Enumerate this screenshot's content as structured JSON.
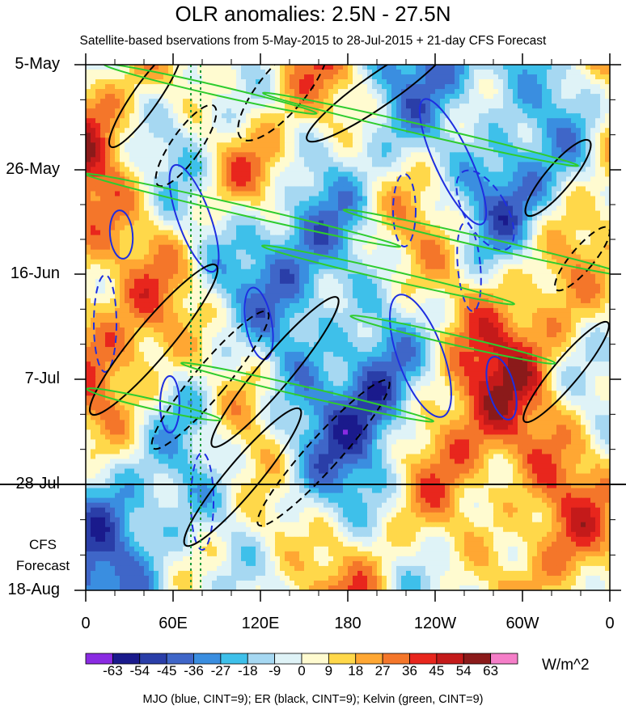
{
  "title": "OLR anomalies: 2.5N - 27.5N",
  "subtitle": "Satellite-based bservations from 5-May-2015 to 28-Jul-2015 + 21-day CFS Forecast",
  "forecast_label_1": "CFS",
  "forecast_label_2": "Forecast",
  "units": "W/m^2",
  "footer": "MJO (blue, CINT=9); ER (black, CINT=9); Kelvin (green, CINT=9)",
  "colorbar": {
    "labels": [
      "-63",
      "-54",
      "-45",
      "-36",
      "-27",
      "-18",
      "-9",
      "0",
      "9",
      "18",
      "27",
      "36",
      "45",
      "54",
      "63"
    ],
    "colors": [
      "#8a2be2",
      "#1a1a8c",
      "#2a3ea8",
      "#3f66c8",
      "#3a8ee0",
      "#3ec0ea",
      "#a6d8f2",
      "#dff3f7",
      "#fffbd0",
      "#ffd84a",
      "#ffa733",
      "#f4762a",
      "#e8261d",
      "#c41a1a",
      "#8b1a1a",
      "#f57ec8"
    ]
  },
  "chart_data": {
    "type": "heatmap",
    "title": "OLR anomalies: 2.5N - 27.5N",
    "xlabel": "",
    "ylabel": "",
    "x_ticks": [
      "0",
      "60E",
      "120E",
      "180",
      "120W",
      "60W",
      "0"
    ],
    "y_ticks": [
      "5-May",
      "26-May",
      "16-Jun",
      "7-Jul",
      "28-Jul",
      "18-Aug"
    ],
    "xlim": [
      0,
      360
    ],
    "forecast_start": "28-Jul",
    "levels": [
      -63,
      -54,
      -45,
      -36,
      -27,
      -18,
      -9,
      0,
      9,
      18,
      27,
      36,
      45,
      54,
      63
    ],
    "units": "W/m^2",
    "overlays": [
      "MJO (blue, CINT=9)",
      "ER (black, CINT=9)",
      "Kelvin (green, CINT=9)"
    ]
  }
}
